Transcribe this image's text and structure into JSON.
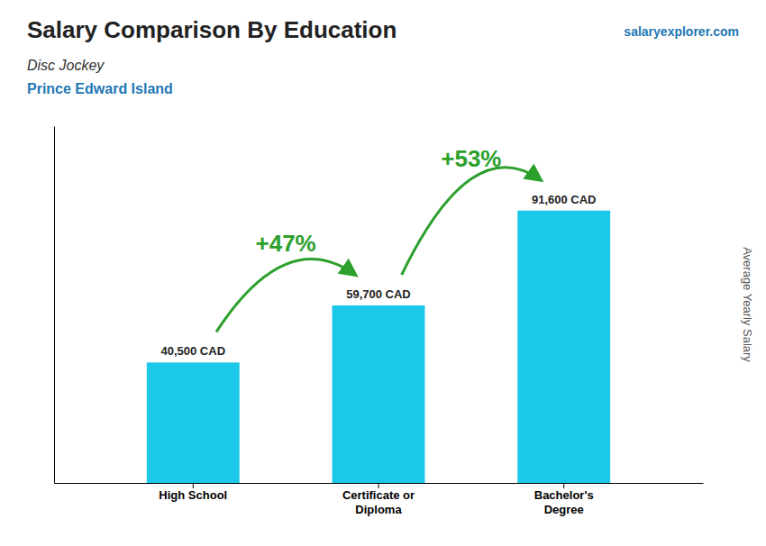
{
  "chart_data": {
    "type": "bar",
    "title": "Salary Comparison By Education",
    "subtitle": [
      "Disc Jockey",
      "Prince Edward Island"
    ],
    "ylabel": "Average Yearly Salary",
    "categories": [
      "High School",
      "Certificate or\nDiploma",
      "Bachelor's\nDegree"
    ],
    "values": [
      40500,
      59700,
      91600
    ],
    "value_labels": [
      "40,500 CAD",
      "59,700 CAD",
      "91,600 CAD"
    ],
    "data_labels": true,
    "annotations": [
      "+47%",
      "+53%",
      "salaryexplorer.com"
    ],
    "color": "#1BC8E8",
    "ylim": [
      0,
      120000
    ],
    "yticks": [],
    "tick_labels": "x"
  }
}
